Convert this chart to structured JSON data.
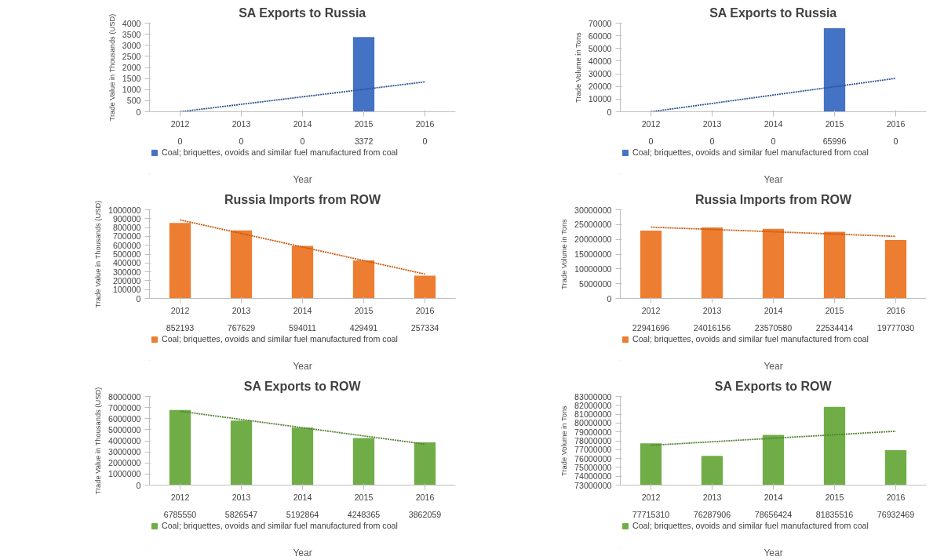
{
  "chart_data": [
    {
      "type": "bar",
      "title": "SA Exports to Russia",
      "xlabel": "Year",
      "ylabel": "Trade Value in Thousands (USD)",
      "x": [
        2012,
        2013,
        2014,
        2015,
        2016
      ],
      "xlim": [
        2011.5,
        2016.5
      ],
      "xticks": [
        2012,
        2013,
        2014,
        2015,
        2016
      ],
      "ylim": [
        0,
        4000
      ],
      "yticks": [
        0,
        500,
        1000,
        1500,
        2000,
        2500,
        3000,
        3500,
        4000
      ],
      "grid": false,
      "legend": "bottom",
      "series": [
        {
          "name": "Coal; briquettes, ovoids and similar fuel manufactured from coal",
          "color": "#4472c4",
          "values": [
            0,
            0,
            0,
            3372,
            0
          ],
          "value_labels": [
            "0",
            "0",
            "0",
            "3372",
            "0"
          ]
        },
        {
          "type": "line",
          "values": [
            0,
            337,
            674,
            1012,
            1349
          ],
          "color": "#2f5597",
          "line_style": "dotted"
        }
      ]
    },
    {
      "type": "bar",
      "title": "SA Exports to Russia",
      "xlabel": "Year",
      "ylabel": "Trade Volume in Tons",
      "x": [
        2012,
        2013,
        2014,
        2015,
        2016
      ],
      "xlim": [
        2011.5,
        2016.5
      ],
      "xticks": [
        2012,
        2013,
        2014,
        2015,
        2016
      ],
      "ylim": [
        0,
        70000
      ],
      "yticks": [
        0,
        10000,
        20000,
        30000,
        40000,
        50000,
        60000,
        70000
      ],
      "grid": false,
      "legend": "bottom",
      "series": [
        {
          "name": "Coal; briquettes, ovoids and similar fuel manufactured from coal",
          "color": "#4472c4",
          "values": [
            0,
            0,
            0,
            65996,
            0
          ],
          "value_labels": [
            "0",
            "0",
            "0",
            "65996",
            "0"
          ]
        },
        {
          "type": "line",
          "values": [
            0,
            6600,
            13200,
            19800,
            26400
          ],
          "color": "#2f5597",
          "line_style": "dotted"
        }
      ]
    },
    {
      "type": "bar",
      "title": "Russia Imports from ROW",
      "xlabel": "Year",
      "ylabel": "Trade Value in Thousands (USD)",
      "x": [
        2012,
        2013,
        2014,
        2015,
        2016
      ],
      "xlim": [
        2011.5,
        2016.5
      ],
      "xticks": [
        2012,
        2013,
        2014,
        2015,
        2016
      ],
      "ylim": [
        0,
        1000000
      ],
      "yticks": [
        0,
        100000,
        200000,
        300000,
        400000,
        500000,
        600000,
        700000,
        800000,
        900000,
        1000000
      ],
      "grid": false,
      "legend": "bottom",
      "series": [
        {
          "name": "Coal; briquettes, ovoids and similar fuel manufactured from coal",
          "color": "#ed7d31",
          "values": [
            852193,
            767629,
            594011,
            429491,
            257334
          ],
          "value_labels": [
            "852193",
            "767629",
            "594011",
            "429491",
            "257334"
          ]
        },
        {
          "type": "line",
          "values": [
            885700,
            732900,
            580100,
            427300,
            274600
          ],
          "color": "#c55a11",
          "line_style": "dotted"
        }
      ]
    },
    {
      "type": "bar",
      "title": "Russia Imports from ROW",
      "xlabel": "Year",
      "ylabel": "Trade Volume in Tons",
      "x": [
        2012,
        2013,
        2014,
        2015,
        2016
      ],
      "xlim": [
        2011.5,
        2016.5
      ],
      "xticks": [
        2012,
        2013,
        2014,
        2015,
        2016
      ],
      "ylim": [
        0,
        30000000
      ],
      "yticks": [
        0,
        5000000,
        10000000,
        15000000,
        20000000,
        25000000,
        30000000
      ],
      "grid": false,
      "legend": "bottom",
      "series": [
        {
          "name": "Coal; briquettes, ovoids and similar fuel manufactured from coal",
          "color": "#ed7d31",
          "values": [
            22941696,
            24016156,
            23570580,
            22534414,
            19777030
          ],
          "value_labels": [
            "22941696",
            "24016156",
            "23570580",
            "22534414",
            "19777030"
          ]
        },
        {
          "type": "line",
          "values": [
            24130000,
            23350000,
            22570000,
            21790000,
            21010000
          ],
          "color": "#c55a11",
          "line_style": "dotted"
        }
      ]
    },
    {
      "type": "bar",
      "title": "SA Exports to ROW",
      "xlabel": "Year",
      "ylabel": "Trade Value in Thousands (USD)",
      "x": [
        2012,
        2013,
        2014,
        2015,
        2016
      ],
      "xlim": [
        2011.5,
        2016.5
      ],
      "xticks": [
        2012,
        2013,
        2014,
        2015,
        2016
      ],
      "ylim": [
        0,
        8000000
      ],
      "yticks": [
        0,
        1000000,
        2000000,
        3000000,
        4000000,
        5000000,
        6000000,
        7000000,
        8000000
      ],
      "grid": false,
      "legend": "bottom",
      "series": [
        {
          "name": "Coal; briquettes, ovoids and similar fuel manufactured from coal",
          "color": "#70ad47",
          "values": [
            6785550,
            5826547,
            5192864,
            4248365,
            3862059
          ],
          "value_labels": [
            "6785550",
            "5826547",
            "5192864",
            "4248365",
            "3862059"
          ]
        },
        {
          "type": "line",
          "values": [
            6668000,
            5926000,
            5183000,
            4441000,
            3698000
          ],
          "color": "#548235",
          "line_style": "dotted"
        }
      ]
    },
    {
      "type": "bar",
      "title": "SA Exports to ROW",
      "xlabel": "Year",
      "ylabel": "Trade Volume in Tons",
      "x": [
        2012,
        2013,
        2014,
        2015,
        2016
      ],
      "xlim": [
        2011.5,
        2016.5
      ],
      "xticks": [
        2012,
        2013,
        2014,
        2015,
        2016
      ],
      "ylim": [
        73000000,
        83000000
      ],
      "yticks": [
        73000000,
        74000000,
        75000000,
        76000000,
        77000000,
        78000000,
        79000000,
        80000000,
        81000000,
        82000000,
        83000000
      ],
      "grid": false,
      "legend": "bottom",
      "series": [
        {
          "name": "Coal; briquettes, ovoids and similar fuel manufactured from coal",
          "color": "#70ad47",
          "values": [
            77715310,
            76287906,
            78656424,
            81835516,
            76932469
          ],
          "value_labels": [
            "77715310",
            "76287906",
            "78656424",
            "81835516",
            "76932469"
          ]
        },
        {
          "type": "line",
          "values": [
            77490000,
            77890000,
            78290000,
            78680000,
            79080000
          ],
          "color": "#548235",
          "line_style": "dotted"
        }
      ]
    }
  ]
}
